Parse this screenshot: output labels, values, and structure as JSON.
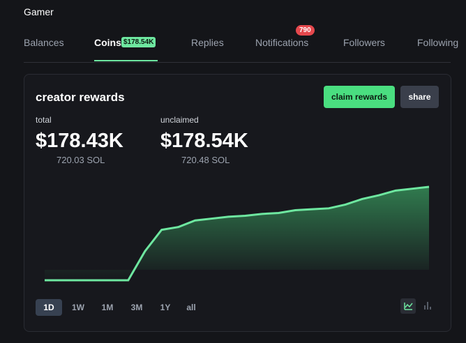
{
  "header": {
    "user": "Gamer"
  },
  "tabs": [
    {
      "label": "Balances"
    },
    {
      "label": "Coins",
      "badge": "$178.54K",
      "active": true
    },
    {
      "label": "Replies"
    },
    {
      "label": "Notifications",
      "badge": "790"
    },
    {
      "label": "Followers"
    },
    {
      "label": "Following"
    }
  ],
  "card": {
    "title": "creator rewards",
    "buttons": [
      "claim rewards",
      "share"
    ],
    "stats": [
      {
        "label": "total",
        "value": "$178.43K",
        "sub": "720.03 SOL"
      },
      {
        "label": "unclaimed",
        "value": "$178.54K",
        "sub": "720.48 SOL"
      }
    ],
    "ranges": [
      "1D",
      "1W",
      "1M",
      "3M",
      "1Y",
      "all"
    ],
    "active_range": "1D"
  },
  "chart_data": {
    "type": "area",
    "color": "#6ee7a0",
    "ylim": [
      0,
      100
    ],
    "values": [
      0,
      0,
      0,
      0,
      0,
      0,
      31,
      54,
      57,
      64,
      66,
      68,
      69,
      71,
      72,
      75,
      76,
      77,
      81,
      87,
      91,
      96,
      98,
      100
    ]
  }
}
